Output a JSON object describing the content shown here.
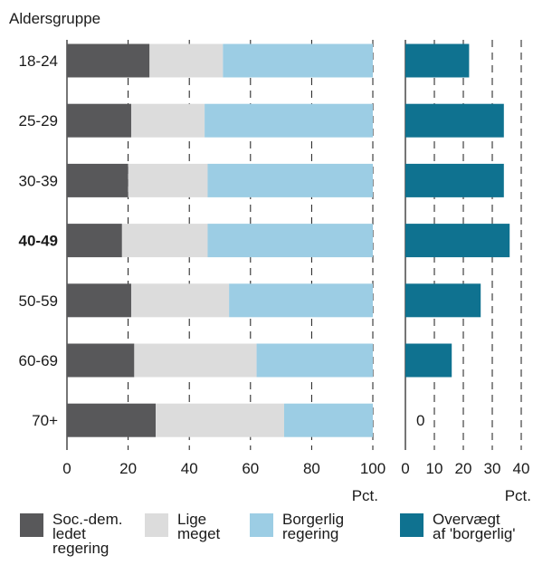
{
  "chart_data": [
    {
      "type": "bar",
      "stacked": true,
      "orientation": "horizontal",
      "title": "Aldersgruppe",
      "xlabel": "Pct.",
      "xlim": [
        0,
        100
      ],
      "xticks": [
        "0",
        "20",
        "40",
        "60",
        "80",
        "100"
      ],
      "categories": [
        "18-24",
        "25-29",
        "30-39",
        "40-49",
        "50-59",
        "60-69",
        "70+"
      ],
      "highlighted_category": "40-49",
      "series": [
        {
          "name": "Soc.-dem. ledet regering",
          "color": "#58585a",
          "values": [
            27,
            21,
            20,
            18,
            21,
            22,
            29
          ]
        },
        {
          "name": "Lige meget",
          "color": "#dcdcdc",
          "values": [
            24,
            24,
            26,
            28,
            32,
            40,
            42
          ]
        },
        {
          "name": "Borgerlig regering",
          "color": "#9ccde4",
          "values": [
            49,
            55,
            54,
            54,
            47,
            38,
            29
          ]
        }
      ],
      "grid": true
    },
    {
      "type": "bar",
      "orientation": "horizontal",
      "xlabel": "Pct.",
      "xlim": [
        0,
        40
      ],
      "xticks": [
        "0",
        "10",
        "20",
        "30",
        "40"
      ],
      "categories": [
        "18-24",
        "25-29",
        "30-39",
        "40-49",
        "50-59",
        "60-69",
        "70+"
      ],
      "series": [
        {
          "name": "Overvægt af 'borgerlig'",
          "color": "#0f7290",
          "values": [
            22,
            34,
            34,
            36,
            26,
            16,
            0
          ]
        }
      ],
      "value_labels": [
        "",
        "",
        "",
        "",
        "",
        "",
        "0"
      ],
      "grid": true
    }
  ],
  "legend": [
    {
      "label": "Soc.-dem.\nledet\nregering",
      "color": "#58585a"
    },
    {
      "label": "Lige\nmeget",
      "color": "#dcdcdc"
    },
    {
      "label": "Borgerlig\nregering",
      "color": "#9ccde4"
    },
    {
      "label": "Overvægt\naf 'borgerlig'",
      "color": "#0f7290"
    }
  ]
}
